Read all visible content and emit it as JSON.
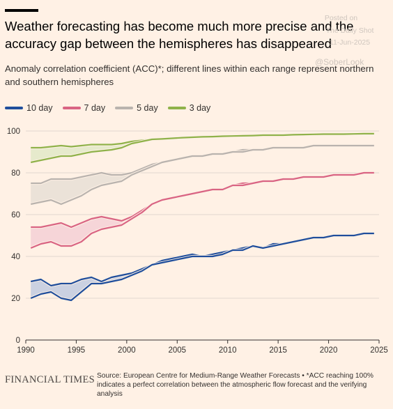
{
  "header": {
    "title": "Weather forecasting has become much more precise and the accuracy gap between the hemispheres has disappeared",
    "subtitle": "Anomaly correlation coefficient (ACC)*; different lines within each range represent northern and southern hemispheres"
  },
  "watermark": {
    "line1": "Posted on",
    "line2": "The Daily Shot",
    "line3": "11-Jun-2025",
    "handle": "@SoberLook"
  },
  "footer": {
    "logo_text": "FINANCIAL TIMES",
    "source": "Source: European Centre for Medium-Range Weather Forecasts • *ACC reaching 100% indicates a perfect correlation between the atmospheric flow forecast and the verifying analysis"
  },
  "colors": {
    "background": "#FFF1E5",
    "day10": "#1F4E9C",
    "day7": "#D96483",
    "day5": "#B9B3AE",
    "day3": "#8FB24A",
    "fill10": "#C5CDE0",
    "fill7": "#F5D2D6",
    "fill5": "#E9E0D6",
    "fill3": "#E3E9C9",
    "grid": "#E1D7CE",
    "axis": "#33302E"
  },
  "chart_data": {
    "type": "line",
    "xlim": [
      1990,
      2025
    ],
    "ylim": [
      0,
      100
    ],
    "x_ticks": [
      "1990",
      "1995",
      "2000",
      "2005",
      "2010",
      "2015",
      "2020",
      "2025"
    ],
    "y_ticks": [
      "0",
      "20",
      "40",
      "60",
      "80",
      "100"
    ],
    "grid": "horizontal",
    "legend_position": "top-left",
    "series": [
      {
        "name": "10 day",
        "color_key": "day10",
        "fill_key": "fill10",
        "hemispheres": [
          {
            "x": [
              1990.5,
              1991.5,
              1992.5,
              1993.5,
              1994.5,
              1995.5,
              1996.5,
              1997.5,
              1998.5,
              1999.5,
              2000.5,
              2001.5,
              2002.5,
              2003.5,
              2004.5,
              2005.5,
              2006.5,
              2007.5,
              2008.5,
              2009.5,
              2010.5,
              2011.5,
              2012.5,
              2013.5,
              2014.5,
              2015.5,
              2016.5,
              2017.5,
              2018.5,
              2019.5,
              2020.5,
              2021.5,
              2022.5,
              2023.5,
              2024.5
            ],
            "y": [
              28,
              29,
              26,
              27,
              27,
              29,
              30,
              28,
              30,
              31,
              32,
              34,
              36,
              38,
              39,
              40,
              41,
              40,
              41,
              42,
              43,
              44,
              45,
              44,
              46,
              46,
              47,
              48,
              49,
              49,
              50,
              50,
              50,
              51,
              51
            ]
          },
          {
            "x": [
              1990.5,
              1991.5,
              1992.5,
              1993.5,
              1994.5,
              1995.5,
              1996.5,
              1997.5,
              1998.5,
              1999.5,
              2000.5,
              2001.5,
              2002.5,
              2003.5,
              2004.5,
              2005.5,
              2006.5,
              2007.5,
              2008.5,
              2009.5,
              2010.5,
              2011.5,
              2012.5,
              2013.5,
              2014.5,
              2015.5,
              2016.5,
              2017.5,
              2018.5,
              2019.5,
              2020.5,
              2021.5,
              2022.5,
              2023.5,
              2024.5
            ],
            "y": [
              20,
              22,
              23,
              20,
              19,
              23,
              27,
              27,
              28,
              29,
              31,
              33,
              36,
              37,
              38,
              39,
              40,
              40,
              40,
              41,
              43,
              43,
              45,
              44,
              45,
              46,
              47,
              48,
              49,
              49,
              50,
              50,
              50,
              51,
              51
            ]
          }
        ]
      },
      {
        "name": "7 day",
        "color_key": "day7",
        "fill_key": "fill7",
        "hemispheres": [
          {
            "x": [
              1990.5,
              1991.5,
              1992.5,
              1993.5,
              1994.5,
              1995.5,
              1996.5,
              1997.5,
              1998.5,
              1999.5,
              2000.5,
              2001.5,
              2002.5,
              2003.5,
              2004.5,
              2005.5,
              2006.5,
              2007.5,
              2008.5,
              2009.5,
              2010.5,
              2011.5,
              2012.5,
              2013.5,
              2014.5,
              2015.5,
              2016.5,
              2017.5,
              2018.5,
              2019.5,
              2020.5,
              2021.5,
              2022.5,
              2023.5,
              2024.5
            ],
            "y": [
              54,
              54,
              55,
              56,
              54,
              56,
              58,
              59,
              58,
              57,
              59,
              62,
              65,
              67,
              68,
              69,
              70,
              71,
              72,
              72,
              74,
              75,
              75,
              76,
              76,
              77,
              77,
              78,
              78,
              78,
              79,
              79,
              79,
              80,
              80
            ]
          },
          {
            "x": [
              1990.5,
              1991.5,
              1992.5,
              1993.5,
              1994.5,
              1995.5,
              1996.5,
              1997.5,
              1998.5,
              1999.5,
              2000.5,
              2001.5,
              2002.5,
              2003.5,
              2004.5,
              2005.5,
              2006.5,
              2007.5,
              2008.5,
              2009.5,
              2010.5,
              2011.5,
              2012.5,
              2013.5,
              2014.5,
              2015.5,
              2016.5,
              2017.5,
              2018.5,
              2019.5,
              2020.5,
              2021.5,
              2022.5,
              2023.5,
              2024.5
            ],
            "y": [
              44,
              46,
              47,
              45,
              45,
              47,
              51,
              53,
              54,
              55,
              58,
              61,
              65,
              67,
              68,
              69,
              70,
              71,
              72,
              72,
              74,
              74,
              75,
              76,
              76,
              77,
              77,
              78,
              78,
              78,
              79,
              79,
              79,
              80,
              80
            ]
          }
        ]
      },
      {
        "name": "5 day",
        "color_key": "day5",
        "fill_key": "fill5",
        "hemispheres": [
          {
            "x": [
              1990.5,
              1991.5,
              1992.5,
              1993.5,
              1994.5,
              1995.5,
              1996.5,
              1997.5,
              1998.5,
              1999.5,
              2000.5,
              2001.5,
              2002.5,
              2003.5,
              2004.5,
              2005.5,
              2006.5,
              2007.5,
              2008.5,
              2009.5,
              2010.5,
              2011.5,
              2012.5,
              2013.5,
              2014.5,
              2015.5,
              2016.5,
              2017.5,
              2018.5,
              2019.5,
              2020.5,
              2021.5,
              2022.5,
              2023.5,
              2024.5
            ],
            "y": [
              75,
              75,
              77,
              77,
              77,
              78,
              79,
              80,
              79,
              79,
              80,
              82,
              84,
              85,
              86,
              87,
              88,
              88,
              89,
              89,
              90,
              91,
              91,
              91,
              92,
              92,
              92,
              92,
              93,
              93,
              93,
              93,
              93,
              93,
              93
            ]
          },
          {
            "x": [
              1990.5,
              1991.5,
              1992.5,
              1993.5,
              1994.5,
              1995.5,
              1996.5,
              1997.5,
              1998.5,
              1999.5,
              2000.5,
              2001.5,
              2002.5,
              2003.5,
              2004.5,
              2005.5,
              2006.5,
              2007.5,
              2008.5,
              2009.5,
              2010.5,
              2011.5,
              2012.5,
              2013.5,
              2014.5,
              2015.5,
              2016.5,
              2017.5,
              2018.5,
              2019.5,
              2020.5,
              2021.5,
              2022.5,
              2023.5,
              2024.5
            ],
            "y": [
              65,
              66,
              67,
              65,
              67,
              69,
              72,
              74,
              75,
              76,
              79,
              81,
              83,
              85,
              86,
              87,
              88,
              88,
              89,
              89,
              90,
              90,
              91,
              91,
              92,
              92,
              92,
              92,
              93,
              93,
              93,
              93,
              93,
              93,
              93
            ]
          }
        ]
      },
      {
        "name": "3 day",
        "color_key": "day3",
        "fill_key": "fill3",
        "hemispheres": [
          {
            "x": [
              1990.5,
              1991.5,
              1992.5,
              1993.5,
              1994.5,
              1995.5,
              1996.5,
              1997.5,
              1998.5,
              1999.5,
              2000.5,
              2001.5,
              2002.5,
              2003.5,
              2004.5,
              2005.5,
              2006.5,
              2007.5,
              2008.5,
              2009.5,
              2010.5,
              2011.5,
              2012.5,
              2013.5,
              2014.5,
              2015.5,
              2016.5,
              2017.5,
              2018.5,
              2019.5,
              2020.5,
              2021.5,
              2022.5,
              2023.5,
              2024.5
            ],
            "y": [
              92,
              92,
              92.5,
              93,
              92.5,
              93,
              93.5,
              93.5,
              93.5,
              94,
              95,
              95.5,
              96,
              96.3,
              96.5,
              96.8,
              97,
              97.2,
              97.3,
              97.5,
              97.6,
              97.7,
              97.8,
              98,
              98,
              98,
              98.2,
              98.3,
              98.4,
              98.5,
              98.5,
              98.5,
              98.6,
              98.7,
              98.7
            ]
          },
          {
            "x": [
              1990.5,
              1991.5,
              1992.5,
              1993.5,
              1994.5,
              1995.5,
              1996.5,
              1997.5,
              1998.5,
              1999.5,
              2000.5,
              2001.5,
              2002.5,
              2003.5,
              2004.5,
              2005.5,
              2006.5,
              2007.5,
              2008.5,
              2009.5,
              2010.5,
              2011.5,
              2012.5,
              2013.5,
              2014.5,
              2015.5,
              2016.5,
              2017.5,
              2018.5,
              2019.5,
              2020.5,
              2021.5,
              2022.5,
              2023.5,
              2024.5
            ],
            "y": [
              85,
              86,
              87,
              88,
              88,
              89,
              90,
              90.5,
              91,
              92,
              94,
              95,
              96,
              96.2,
              96.5,
              96.8,
              97,
              97.2,
              97.3,
              97.5,
              97.6,
              97.7,
              97.8,
              98,
              98,
              98,
              98.2,
              98.3,
              98.4,
              98.5,
              98.5,
              98.5,
              98.6,
              98.7,
              98.7
            ]
          }
        ]
      }
    ]
  }
}
